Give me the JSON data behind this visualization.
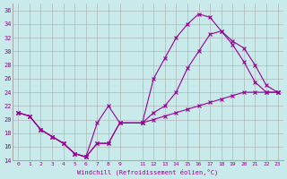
{
  "xlabel": "Windchill (Refroidissement éolien,°C)",
  "bg_color": "#c8eaea",
  "grid_color": "#aaaaaa",
  "line_color": "#990099",
  "xlim": [
    -0.5,
    23.5
  ],
  "ylim": [
    14,
    37
  ],
  "xticks": [
    0,
    1,
    2,
    3,
    4,
    5,
    6,
    7,
    8,
    9,
    11,
    12,
    13,
    14,
    15,
    16,
    17,
    18,
    19,
    20,
    21,
    22,
    23
  ],
  "yticks": [
    14,
    16,
    18,
    20,
    22,
    24,
    26,
    28,
    30,
    32,
    34,
    36
  ],
  "line1_x": [
    0,
    1,
    2,
    3,
    4,
    5,
    6,
    7,
    8,
    9,
    11,
    12,
    13,
    14,
    15,
    16,
    17,
    18,
    19,
    20,
    21,
    22,
    23
  ],
  "line1_y": [
    21,
    20.5,
    18.5,
    17.5,
    16.5,
    15,
    14.5,
    19.5,
    22,
    19.5,
    19.5,
    26,
    29,
    32,
    34,
    35.5,
    35,
    33,
    31,
    28.5,
    25.5,
    24,
    24
  ],
  "line2_x": [
    0,
    1,
    2,
    3,
    4,
    5,
    6,
    7,
    8,
    9,
    11,
    12,
    13,
    14,
    15,
    16,
    17,
    18,
    19,
    20,
    21,
    22,
    23
  ],
  "line2_y": [
    21,
    20.5,
    18.5,
    17.5,
    16.5,
    15,
    14.5,
    16.5,
    16.5,
    19.5,
    19.5,
    20,
    20.5,
    21,
    21.5,
    22,
    22.5,
    23,
    23.5,
    24,
    24,
    24,
    24
  ],
  "line3_x": [
    0,
    1,
    2,
    3,
    4,
    5,
    6,
    7,
    8,
    9,
    11,
    12,
    13,
    14,
    15,
    16,
    17,
    18,
    19,
    20,
    21,
    22,
    23
  ],
  "line3_y": [
    21,
    20.5,
    18.5,
    17.5,
    16.5,
    15,
    14.5,
    16.5,
    16.5,
    19.5,
    19.5,
    21,
    22,
    24,
    27.5,
    30,
    32.5,
    33,
    31.5,
    30.5,
    28,
    25,
    24
  ]
}
